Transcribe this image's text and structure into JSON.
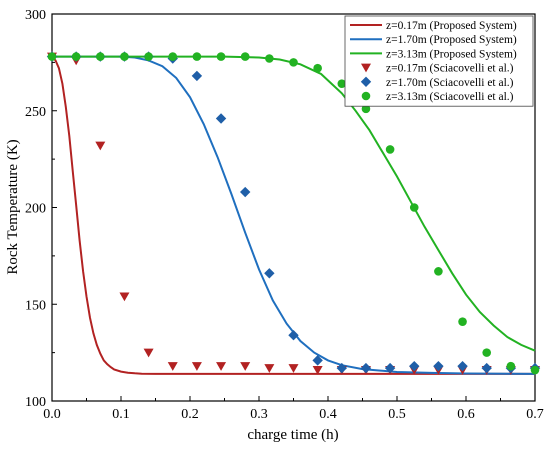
{
  "chart_data": {
    "type": "line",
    "xlabel": "charge time (h)",
    "ylabel": "Rock Temperature (K)",
    "xlim": [
      0.0,
      0.7
    ],
    "ylim": [
      100,
      300
    ],
    "xticks": [
      "0.0",
      "0.1",
      "0.2",
      "0.3",
      "0.4",
      "0.5",
      "0.6",
      "0.7"
    ],
    "yticks": [
      "100",
      "150",
      "200",
      "250",
      "300"
    ],
    "grid": false,
    "legend_position": "top-right",
    "series": [
      {
        "name": "z=0.17m (Proposed System)",
        "kind": "line",
        "color": "#b22222",
        "x": [
          0,
          0.005,
          0.01,
          0.015,
          0.02,
          0.025,
          0.03,
          0.035,
          0.04,
          0.045,
          0.05,
          0.055,
          0.06,
          0.065,
          0.07,
          0.075,
          0.08,
          0.085,
          0.09,
          0.1,
          0.11,
          0.12,
          0.13,
          0.15,
          0.2,
          0.3,
          0.4,
          0.5,
          0.6,
          0.7
        ],
        "y": [
          278,
          276,
          272,
          264,
          252,
          237,
          219,
          201,
          183,
          167,
          154,
          143,
          135,
          129,
          124.5,
          121,
          119,
          117.5,
          116.3,
          115.2,
          114.6,
          114.3,
          114.1,
          114,
          114,
          114,
          114,
          114,
          114,
          114
        ]
      },
      {
        "name": "z=1.70m (Proposed System)",
        "kind": "line",
        "color": "#1f6fbf",
        "x": [
          0,
          0.1,
          0.12,
          0.14,
          0.16,
          0.18,
          0.2,
          0.22,
          0.24,
          0.26,
          0.28,
          0.3,
          0.32,
          0.34,
          0.36,
          0.38,
          0.4,
          0.42,
          0.45,
          0.5,
          0.55,
          0.6,
          0.7
        ],
        "y": [
          278,
          278,
          277.5,
          276,
          273,
          267,
          257,
          243,
          226,
          207,
          187,
          168,
          152,
          140,
          131,
          125,
          121,
          118.5,
          116.5,
          115,
          114.5,
          114.2,
          114
        ]
      },
      {
        "name": "z=3.13m (Proposed System)",
        "kind": "line",
        "color": "#22b222",
        "x": [
          0,
          0.25,
          0.3,
          0.33,
          0.36,
          0.39,
          0.42,
          0.44,
          0.46,
          0.48,
          0.5,
          0.52,
          0.54,
          0.56,
          0.58,
          0.6,
          0.62,
          0.64,
          0.66,
          0.68,
          0.7
        ],
        "y": [
          278,
          278,
          277.5,
          276.5,
          274,
          269,
          259,
          250,
          240,
          228,
          216,
          203,
          190,
          178,
          166,
          155,
          146,
          139,
          133,
          129,
          126
        ]
      },
      {
        "name": "z=0.17m (Sciacovelli et al.)",
        "kind": "scatter",
        "marker": "triangle-down",
        "color": "#b22222",
        "x": [
          0.0,
          0.035,
          0.07,
          0.105,
          0.14,
          0.175,
          0.21,
          0.245,
          0.28,
          0.315,
          0.35,
          0.385,
          0.42,
          0.455,
          0.49,
          0.525,
          0.56,
          0.595,
          0.63,
          0.665,
          0.7
        ],
        "y": [
          278,
          276,
          232,
          154,
          125,
          118,
          118,
          118,
          118,
          117,
          117,
          116,
          116,
          116,
          116,
          116,
          116,
          116,
          116,
          116,
          116
        ]
      },
      {
        "name": "z=1.70m (Sciacovelli et al.)",
        "kind": "scatter",
        "marker": "diamond",
        "color": "#1f5fa8",
        "x": [
          0.0,
          0.035,
          0.07,
          0.105,
          0.14,
          0.175,
          0.21,
          0.245,
          0.28,
          0.315,
          0.35,
          0.385,
          0.42,
          0.455,
          0.49,
          0.525,
          0.56,
          0.595,
          0.63,
          0.665,
          0.7
        ],
        "y": [
          278,
          278,
          278,
          278,
          278,
          277,
          268,
          246,
          208,
          166,
          134,
          121,
          117,
          117,
          117,
          118,
          118,
          118,
          117,
          117,
          117
        ]
      },
      {
        "name": "z=3.13m (Sciacovelli et al.)",
        "kind": "scatter",
        "marker": "circle",
        "color": "#22b222",
        "x": [
          0.0,
          0.035,
          0.07,
          0.105,
          0.14,
          0.175,
          0.21,
          0.245,
          0.28,
          0.315,
          0.35,
          0.385,
          0.42,
          0.455,
          0.49,
          0.525,
          0.56,
          0.595,
          0.63,
          0.665,
          0.7
        ],
        "y": [
          278,
          278,
          278,
          278,
          278,
          278,
          278,
          278,
          278,
          277,
          275,
          272,
          264,
          251,
          230,
          200,
          167,
          141,
          125,
          118,
          116
        ]
      }
    ]
  }
}
